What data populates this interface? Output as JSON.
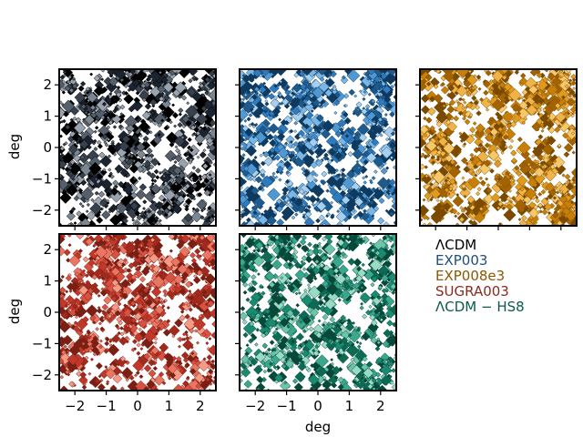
{
  "chart_data": {
    "type": "scatter",
    "title": "",
    "xlabel": "deg",
    "ylabel": "deg",
    "xlim": [
      -2.5,
      2.5
    ],
    "ylim": [
      -2.5,
      2.5
    ],
    "xticks": [
      -2,
      -1,
      0,
      1,
      2
    ],
    "yticks": [
      -2,
      -1,
      0,
      1,
      2
    ],
    "tick_labels": [
      "−2",
      "−1",
      "0",
      "1",
      "2"
    ],
    "grid": false,
    "legend_placement": "lower-right",
    "panels": [
      {
        "name": "ΛCDM",
        "color": "#000000",
        "palette": [
          "#000000",
          "#1b2430",
          "#37414e",
          "#56606d",
          "#7c8794",
          "#9aa4b0"
        ]
      },
      {
        "name": "EXP003",
        "color": "#1d4f7d",
        "palette": [
          "#0e3a5f",
          "#1e5a8c",
          "#2f7bbf",
          "#4f98d4",
          "#7ab6e6",
          "#a7d0f0"
        ]
      },
      {
        "name": "EXP008e3",
        "color": "#8a5800",
        "palette": [
          "#7a4a00",
          "#a36300",
          "#c77f0a",
          "#e09a1e",
          "#f0b347",
          "#f6c86a"
        ]
      },
      {
        "name": "SUGRA003",
        "color": "#8b2a1e",
        "palette": [
          "#7a1f14",
          "#a12a1d",
          "#c1372a",
          "#d75242",
          "#ea7563",
          "#f49b88"
        ]
      },
      {
        "name": "ΛCDM − HS8",
        "color": "#0b5a4a",
        "palette": [
          "#07483a",
          "#0d6b55",
          "#1a8a70",
          "#3aa88c",
          "#6cc4a9",
          "#9adbc5"
        ]
      }
    ],
    "points_per_panel": 1300,
    "marker": "diamond"
  }
}
